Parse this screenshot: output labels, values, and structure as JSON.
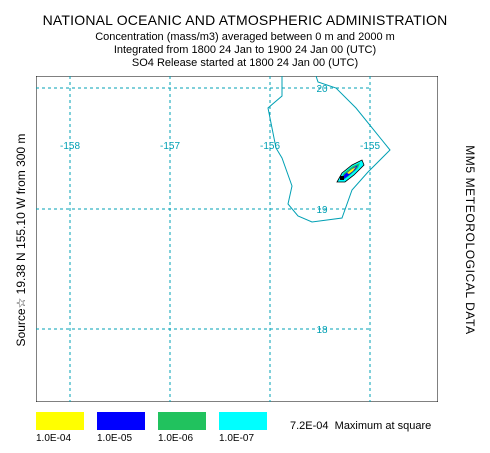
{
  "header": {
    "title": "NATIONAL OCEANIC AND ATMOSPHERIC ADMINISTRATION",
    "line2": "Concentration  (mass/m3) averaged between     0 m and  2000 m",
    "line3": "Integrated from 1800 24 Jan to 1900 24 Jan 00 (UTC)",
    "line4": "SO4  Release started at 1800 24 Jan 00 (UTC)"
  },
  "side": {
    "left": "Source☆  19.38 N  155.10 W     from  300 m",
    "right": "MM5  METEOROLOGICAL DATA"
  },
  "map": {
    "longitude_labels": [
      "-158",
      "-157",
      "-156",
      "-155"
    ],
    "latitude_labels": [
      "20",
      "19",
      "18"
    ],
    "gridline_color": "#00a0b4",
    "coast_color": "#00a0b4"
  },
  "legend": {
    "items": [
      {
        "label": "1.0E-04",
        "color": "#ffff00"
      },
      {
        "label": "1.0E-05",
        "color": "#0000ff"
      },
      {
        "label": "1.0E-06",
        "color": "#21c25e"
      },
      {
        "label": "1.0E-07",
        "color": "#00ffff"
      }
    ],
    "max_value": "7.2E-04",
    "max_text": "Maximum at square"
  }
}
